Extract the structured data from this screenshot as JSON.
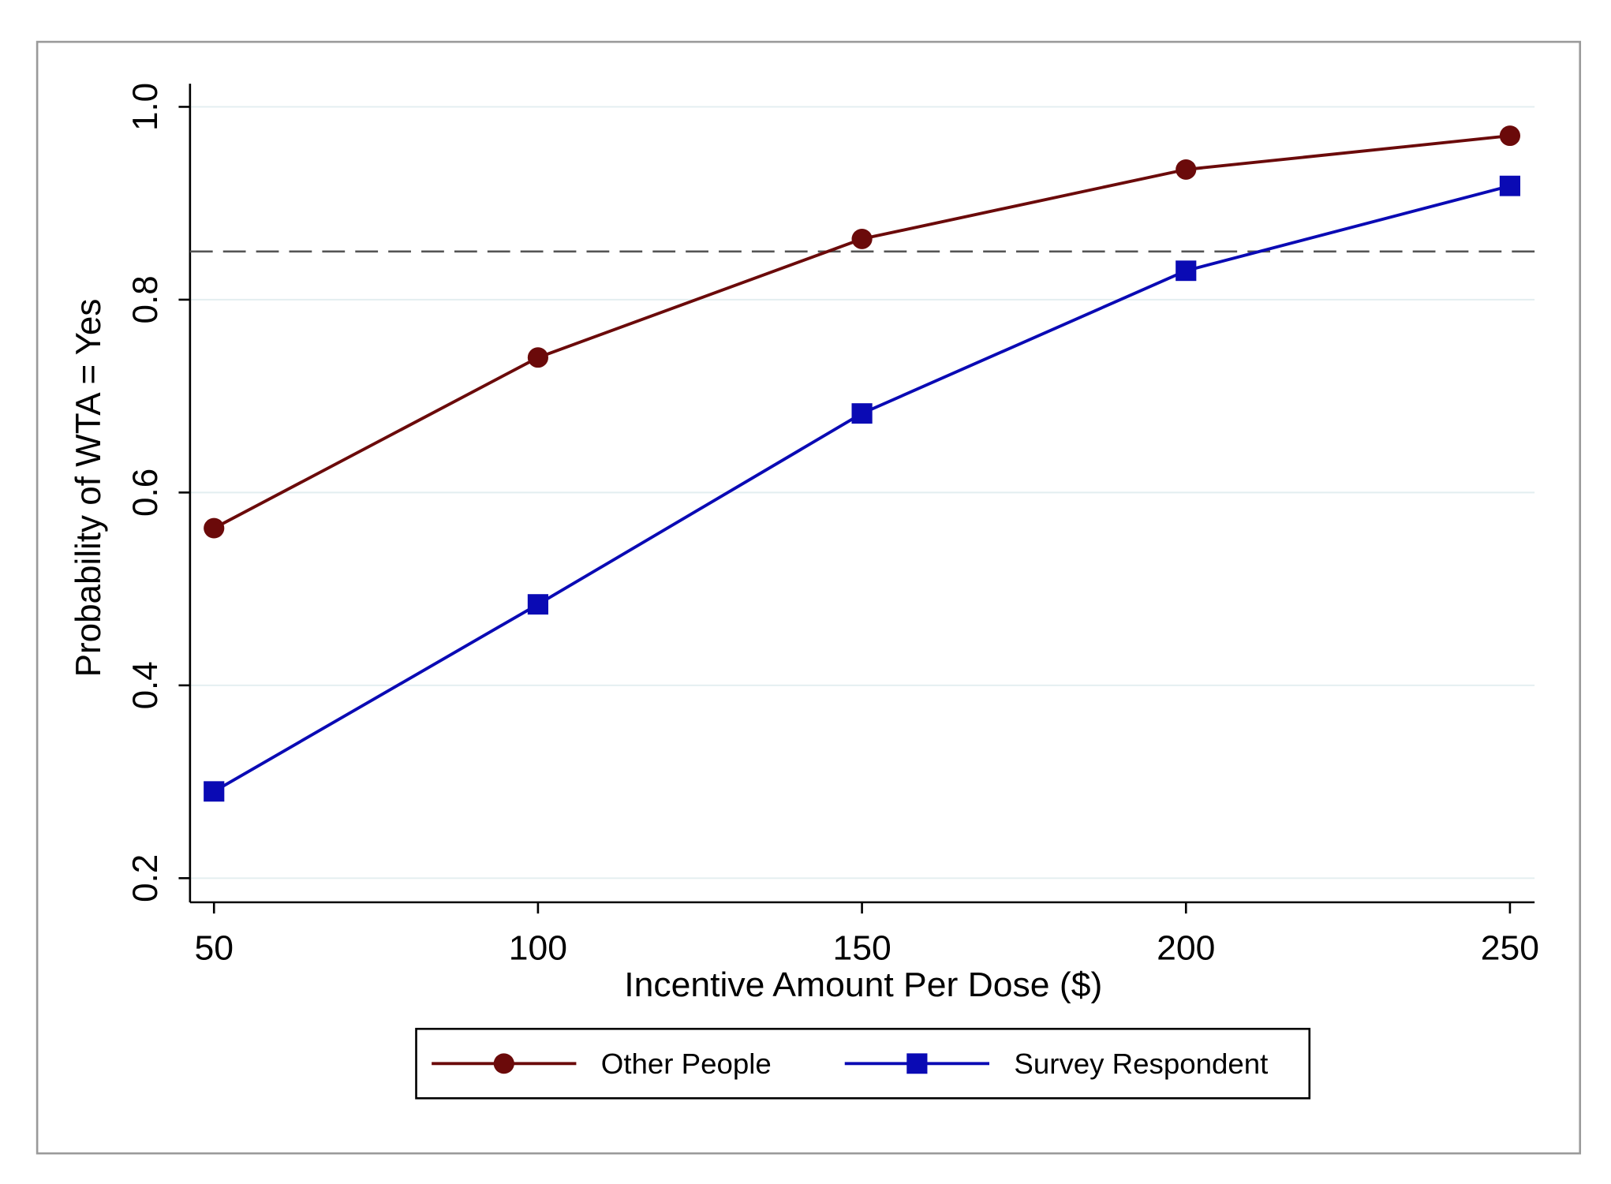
{
  "chart_data": {
    "type": "line",
    "title": "",
    "xlabel": "Incentive Amount Per Dose ($)",
    "ylabel": "Probability of WTA = Yes",
    "x": [
      50,
      100,
      150,
      200,
      250
    ],
    "xticks": [
      "50",
      "100",
      "150",
      "200",
      "250"
    ],
    "yticks": [
      "0.2",
      "0.4",
      "0.6",
      "0.8",
      "1.0"
    ],
    "ytick_values": [
      0.2,
      0.4,
      0.6,
      0.8,
      1.0
    ],
    "xlim": [
      46.3,
      253.8
    ],
    "ylim": [
      0.175,
      1.024
    ],
    "grid": true,
    "reference_line": {
      "y": 0.85,
      "style": "dashed",
      "color": "#555555"
    },
    "series": [
      {
        "name": "Other People",
        "marker": "circle",
        "color": "#6b0a0a",
        "values": [
          0.563,
          0.74,
          0.863,
          0.935,
          0.97
        ]
      },
      {
        "name": "Survey Respondent",
        "marker": "square",
        "color": "#0a0ab4",
        "values": [
          0.29,
          0.484,
          0.682,
          0.83,
          0.918
        ]
      }
    ],
    "legend_position": "bottom"
  }
}
